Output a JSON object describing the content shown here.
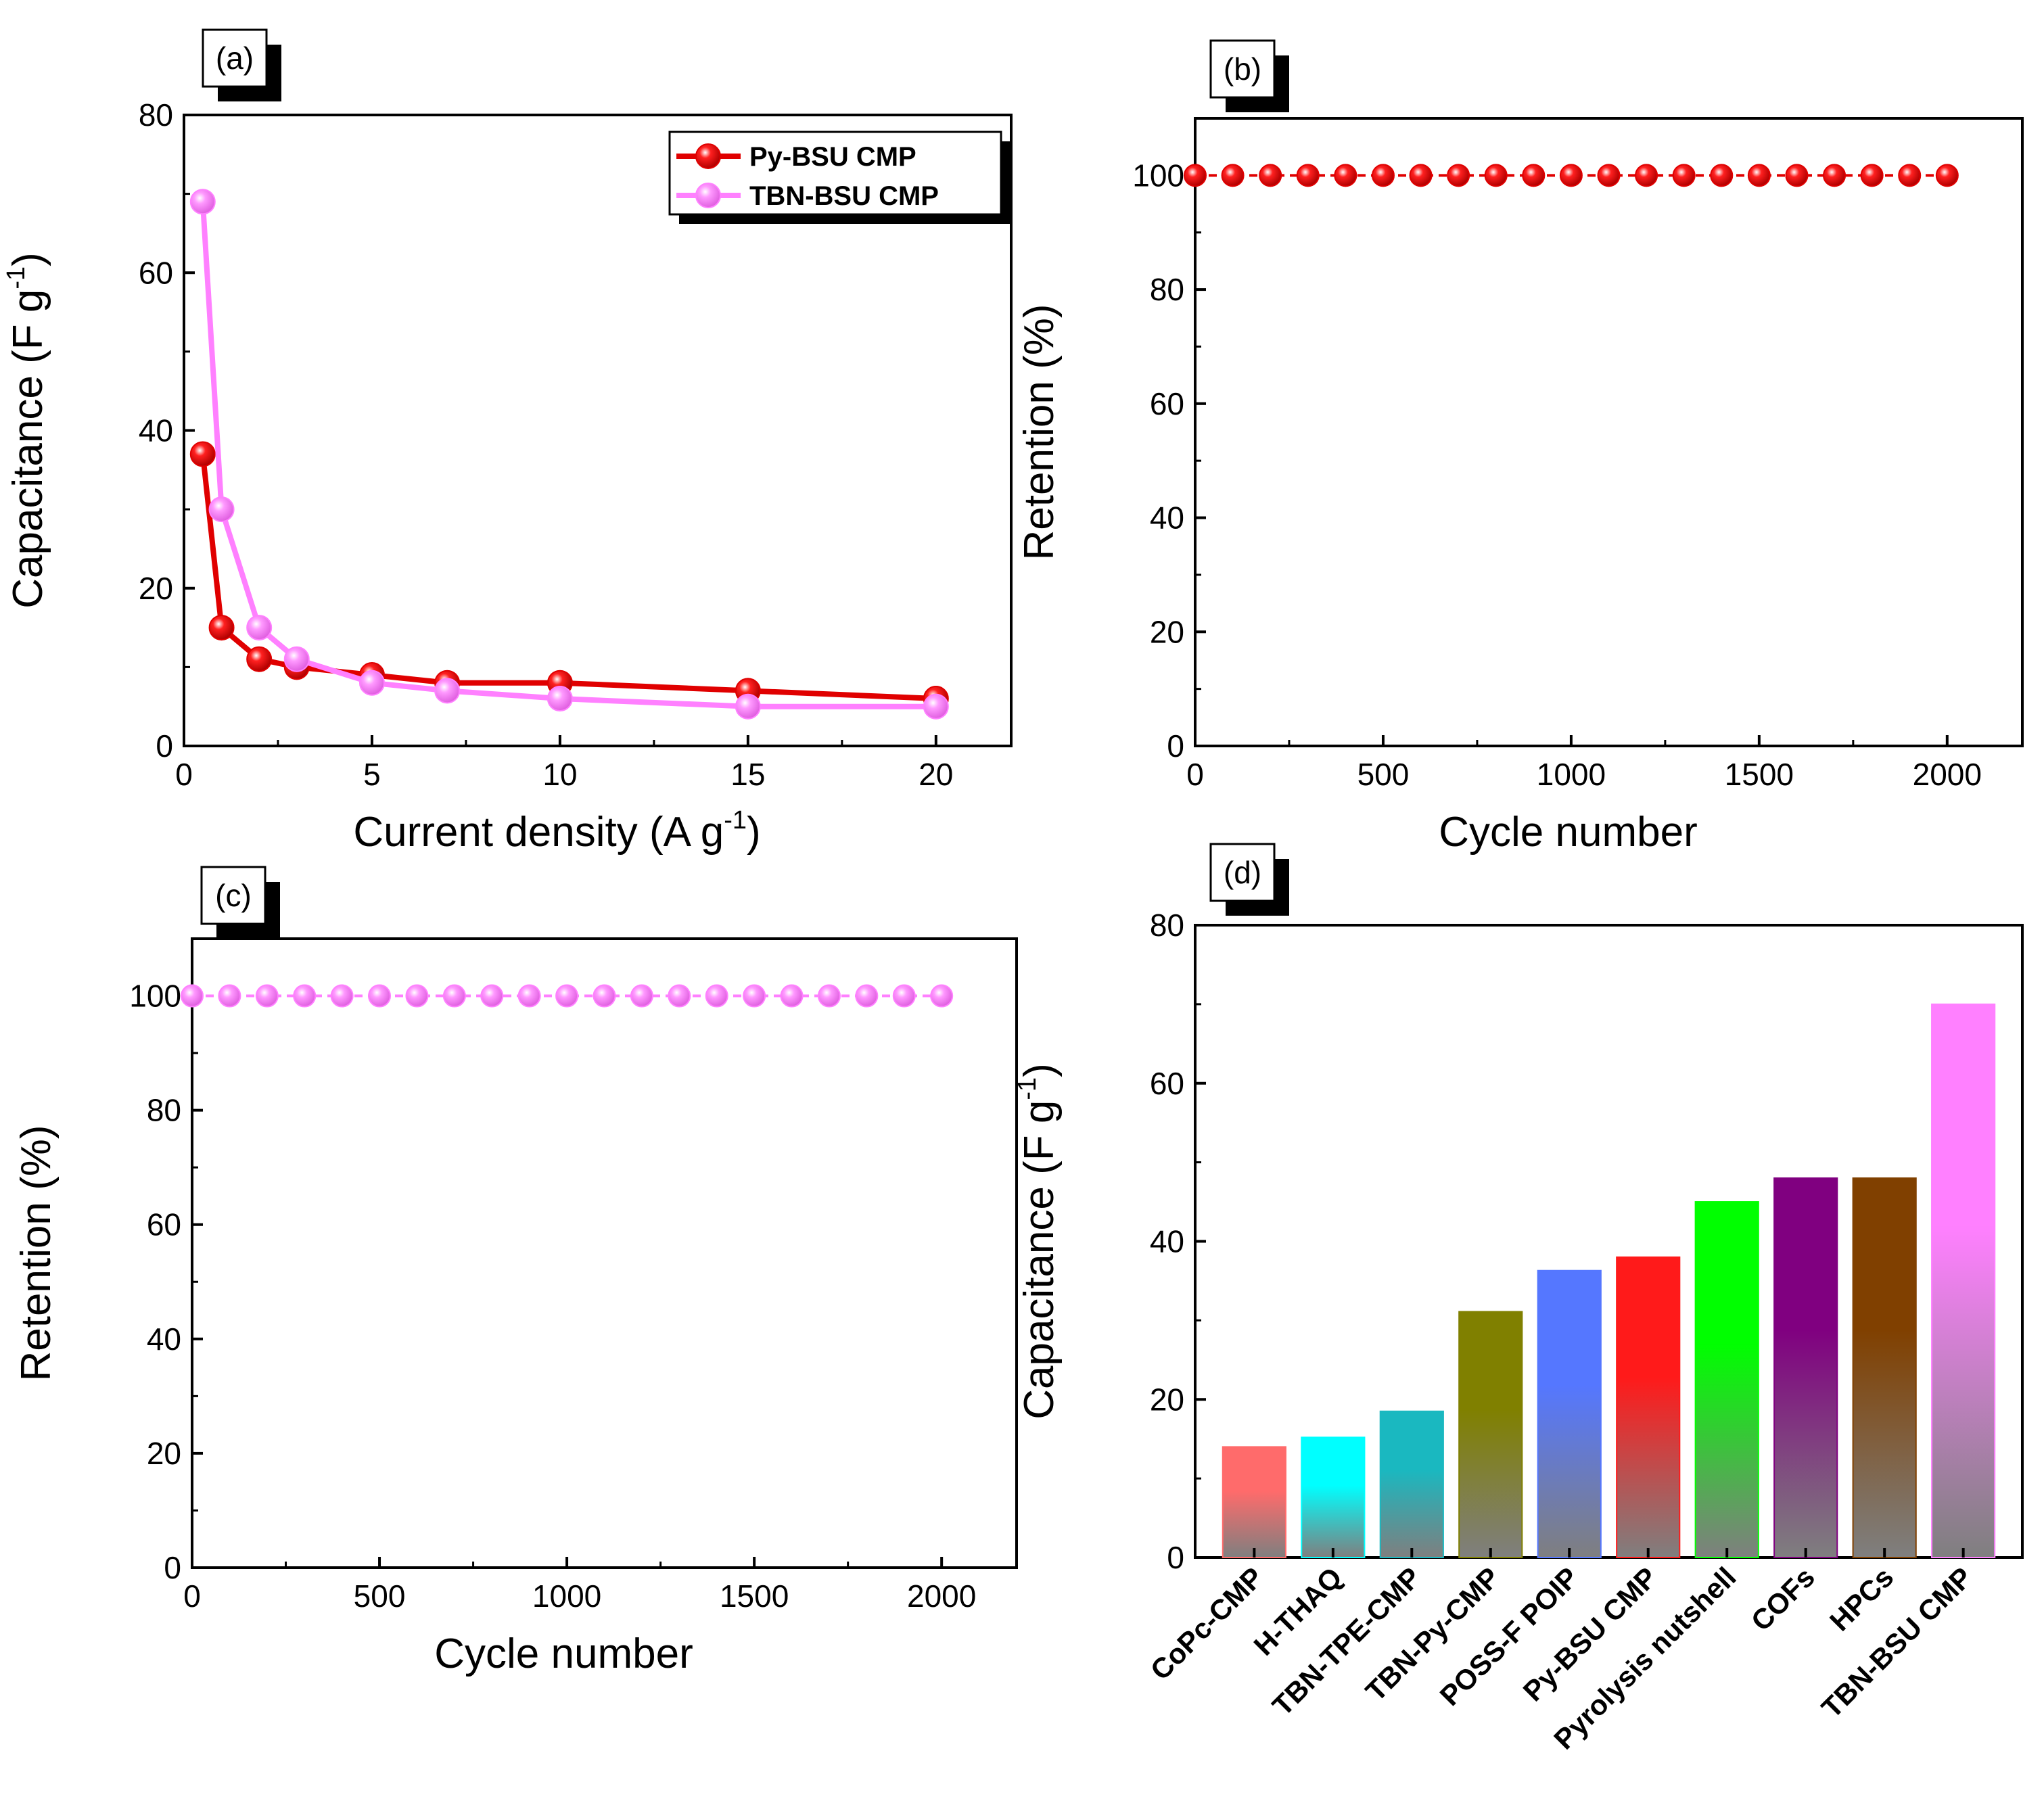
{
  "chart_data": [
    {
      "id": "a",
      "panel_label": "(a)",
      "type": "line",
      "xlabel": "Current density (A g",
      "xlabel_sup": "-1",
      "xlabel_end": ")",
      "ylabel": "Capacitance (F g",
      "ylabel_sup": "-1",
      "ylabel_end": ")",
      "xlim": [
        0,
        22
      ],
      "ylim": [
        0,
        80
      ],
      "xticks": [
        0,
        5,
        10,
        15,
        20
      ],
      "yticks": [
        0,
        20,
        40,
        60,
        80
      ],
      "legend_position": "top-right",
      "series": [
        {
          "name": "Py-BSU CMP",
          "color": "#e00000",
          "x": [
            0.5,
            1,
            2,
            3,
            5,
            7,
            10,
            15,
            20
          ],
          "y": [
            37,
            15,
            11,
            10,
            9,
            8,
            8,
            7,
            6
          ]
        },
        {
          "name": "TBN-BSU CMP",
          "color": "#ff80ff",
          "x": [
            0.5,
            1,
            2,
            3,
            5,
            7,
            10,
            15,
            20
          ],
          "y": [
            69,
            30,
            15,
            11,
            8,
            7,
            6,
            5,
            5
          ]
        }
      ]
    },
    {
      "id": "b",
      "panel_label": "(b)",
      "type": "line",
      "xlabel": "Cycle number",
      "ylabel": "Retention (%)",
      "xlim": [
        0,
        2200
      ],
      "ylim": [
        0,
        110
      ],
      "xticks": [
        0,
        500,
        1000,
        1500,
        2000
      ],
      "yticks": [
        0,
        20,
        40,
        60,
        80,
        100
      ],
      "series": [
        {
          "name": "Py-BSU CMP",
          "color": "#e00000",
          "x": [
            0,
            100,
            200,
            300,
            400,
            500,
            600,
            700,
            800,
            900,
            1000,
            1100,
            1200,
            1300,
            1400,
            1500,
            1600,
            1700,
            1800,
            1900,
            2000
          ],
          "y": [
            100,
            100,
            100,
            100,
            100,
            100,
            100,
            100,
            100,
            100,
            100,
            100,
            100,
            100,
            100,
            100,
            100,
            100,
            100,
            100,
            100
          ]
        }
      ]
    },
    {
      "id": "c",
      "panel_label": "(c)",
      "type": "line",
      "xlabel": "Cycle number",
      "ylabel": "Retention (%)",
      "xlim": [
        0,
        2200
      ],
      "ylim": [
        0,
        110
      ],
      "xticks": [
        0,
        500,
        1000,
        1500,
        2000
      ],
      "yticks": [
        0,
        20,
        40,
        60,
        80,
        100
      ],
      "series": [
        {
          "name": "TBN-BSU CMP",
          "color": "#ff80ff",
          "x": [
            0,
            100,
            200,
            300,
            400,
            500,
            600,
            700,
            800,
            900,
            1000,
            1100,
            1200,
            1300,
            1400,
            1500,
            1600,
            1700,
            1800,
            1900,
            2000
          ],
          "y": [
            100,
            100,
            100,
            100,
            100,
            100,
            100,
            100,
            100,
            100,
            100,
            100,
            100,
            100,
            100,
            100,
            100,
            100,
            100,
            100,
            100
          ]
        }
      ]
    },
    {
      "id": "d",
      "panel_label": "(d)",
      "type": "bar",
      "ylabel": "Capacitance (F g",
      "ylabel_sup": "-1",
      "ylabel_end": ")",
      "ylim": [
        0,
        80
      ],
      "yticks": [
        0,
        20,
        40,
        60,
        80
      ],
      "categories": [
        "CoPc-CMP",
        "H-THAQ",
        "TBN-TPE-CMP",
        "TBN-Py-CMP",
        "POSS-F POIP",
        "Py-BSU CMP",
        "Pyrolysis nutshell",
        "COFs",
        "HPCs",
        "TBN-BSU CMP"
      ],
      "values": [
        14,
        15.2,
        18.5,
        31.1,
        36.3,
        38,
        45,
        48,
        48,
        70
      ],
      "colors": [
        "#ff6b6b",
        "#00ffff",
        "#1ab8c0",
        "#808000",
        "#5577ff",
        "#ff1a1a",
        "#00ff00",
        "#800080",
        "#804000",
        "#ff80ff"
      ]
    }
  ]
}
